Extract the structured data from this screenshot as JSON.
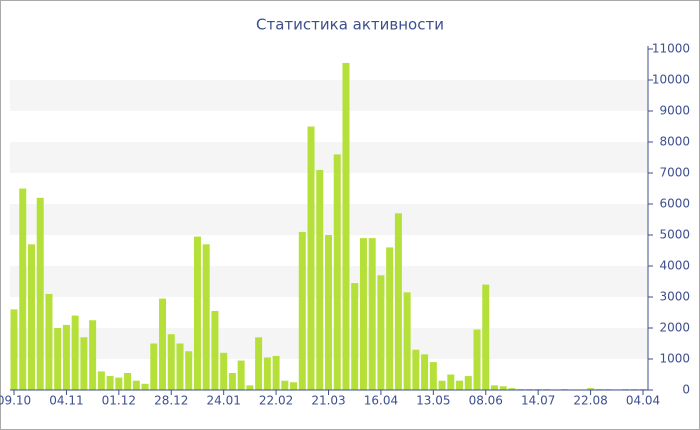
{
  "chart_data": {
    "type": "bar",
    "title": "Статистика активности",
    "categories": [
      "09.10",
      null,
      null,
      null,
      null,
      null,
      "04.11",
      null,
      null,
      null,
      null,
      null,
      "01.12",
      null,
      null,
      null,
      null,
      null,
      "28.12",
      null,
      null,
      null,
      null,
      null,
      "24.01",
      null,
      null,
      null,
      null,
      null,
      "22.02",
      null,
      null,
      null,
      null,
      null,
      "21.03",
      null,
      null,
      null,
      null,
      null,
      "16.04",
      null,
      null,
      null,
      null,
      null,
      "13.05",
      null,
      null,
      null,
      null,
      null,
      "08.06",
      null,
      null,
      null,
      null,
      null,
      "14.07",
      null,
      null,
      null,
      null,
      null,
      "22.08",
      null,
      null,
      null,
      null,
      null,
      "04.04"
    ],
    "values": [
      2600,
      6500,
      4700,
      6200,
      3100,
      2000,
      2100,
      2400,
      1700,
      2250,
      600,
      450,
      400,
      550,
      300,
      200,
      1500,
      2950,
      1800,
      1500,
      1250,
      4950,
      4700,
      2550,
      1200,
      550,
      950,
      150,
      1700,
      1050,
      1100,
      300,
      250,
      5100,
      8500,
      7100,
      5000,
      7600,
      10550,
      3450,
      4900,
      4900,
      3700,
      4600,
      5700,
      3150,
      1300,
      1150,
      900,
      300,
      500,
      300,
      450,
      1950,
      3400,
      150,
      120,
      60,
      30,
      30,
      30,
      30,
      20,
      30,
      20,
      20,
      60,
      30,
      30,
      20,
      30,
      30,
      30
    ],
    "color": "#b5e03a",
    "ylim": [
      0,
      11000
    ],
    "yticks": [
      0,
      1000,
      2000,
      3000,
      4000,
      5000,
      6000,
      7000,
      8000,
      9000,
      10000,
      11000
    ],
    "grid": true
  }
}
